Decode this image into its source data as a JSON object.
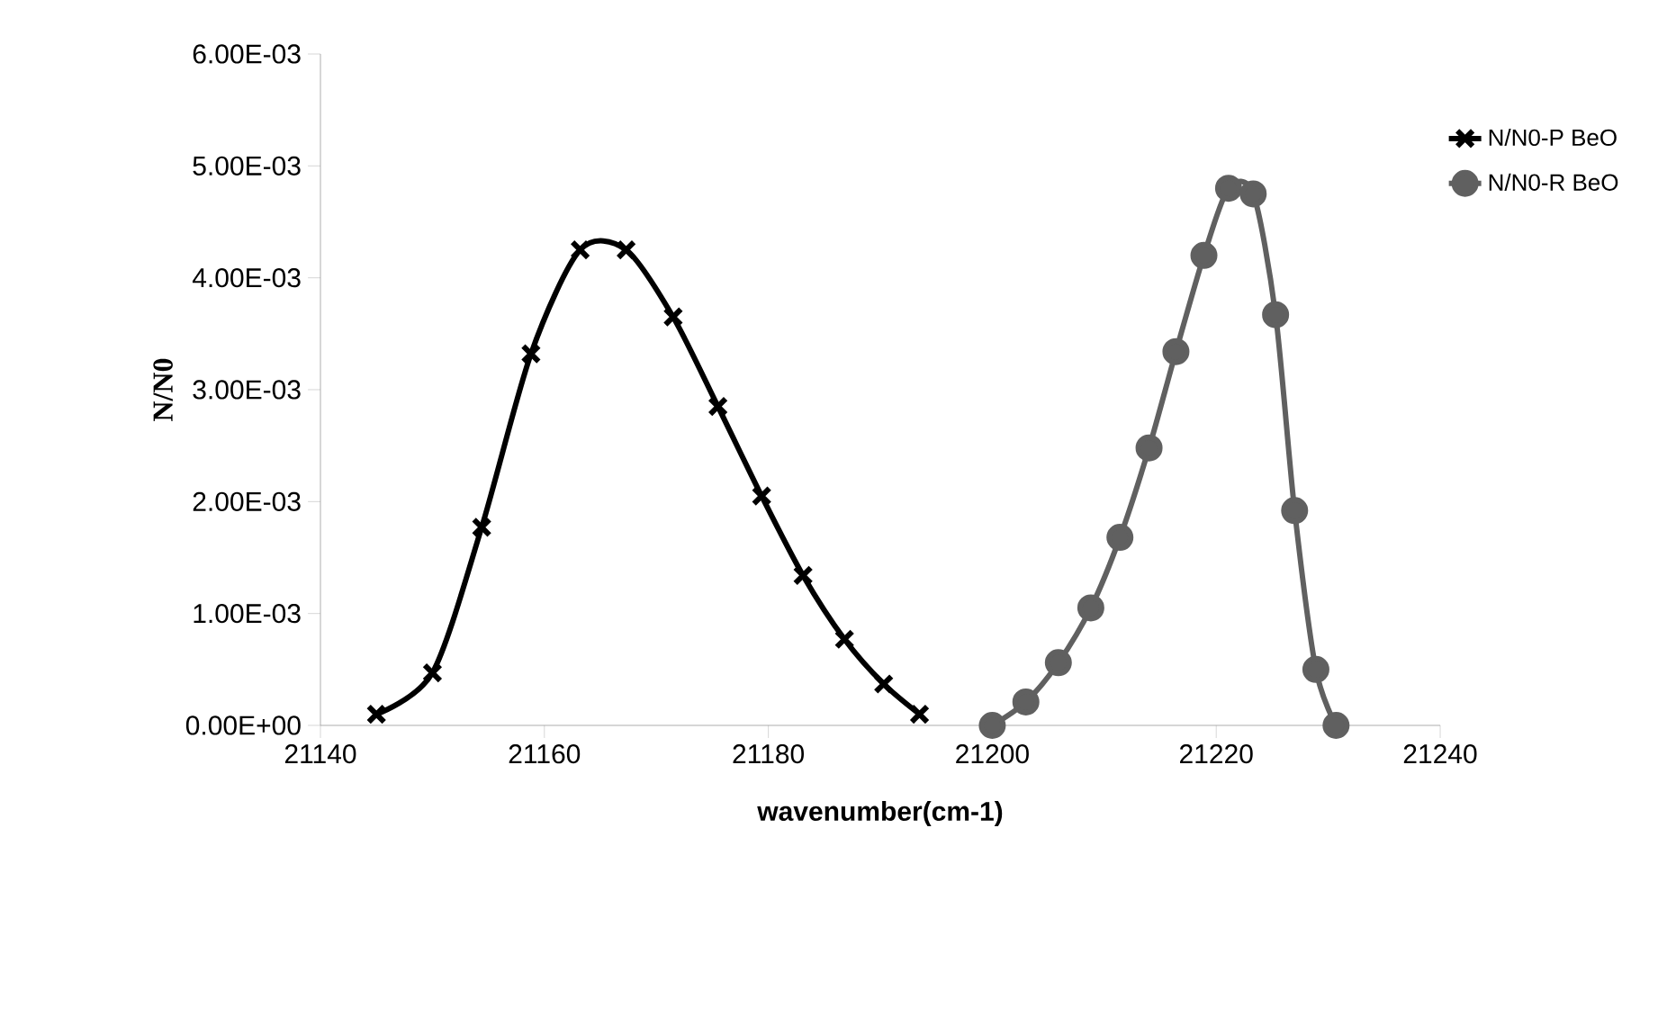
{
  "chart_data": {
    "type": "line",
    "xlabel": "wavenumber(cm-1)",
    "ylabel": "N/N0",
    "xlim": [
      21140,
      21240
    ],
    "xticks": [
      21140,
      21160,
      21180,
      21200,
      21220,
      21240
    ],
    "ylim": [
      0,
      0.006
    ],
    "yticks": [
      {
        "value": 0,
        "label": "0.00E+00"
      },
      {
        "value": 0.001,
        "label": "1.00E-03"
      },
      {
        "value": 0.002,
        "label": "2.00E-03"
      },
      {
        "value": 0.003,
        "label": "3.00E-03"
      },
      {
        "value": 0.004,
        "label": "4.00E-03"
      },
      {
        "value": 0.005,
        "label": "5.00E-03"
      },
      {
        "value": 0.006,
        "label": "6.00E-03"
      }
    ],
    "grid": false,
    "legend": "right",
    "line_style": "solid",
    "series": [
      {
        "name": "N/N0-P BeO",
        "color": "#000000",
        "marker": "cross",
        "x": [
          21145,
          21150,
          21154.4,
          21158.8,
          21163.2,
          21167.3,
          21171.5,
          21175.5,
          21179.4,
          21183.1,
          21186.8,
          21190.3,
          21193.5
        ],
        "values": [
          0.0001,
          0.00047,
          0.00177,
          0.00332,
          0.00425,
          0.00425,
          0.00365,
          0.00285,
          0.00205,
          0.00134,
          0.00077,
          0.00037,
          0.0001
        ]
      },
      {
        "name": "N/N0-R BeO",
        "color": "#606060",
        "marker": "circle",
        "x": [
          21200,
          21203,
          21205.9,
          21208.8,
          21211.4,
          21214,
          21216.4,
          21218.9,
          21221.1,
          21223.3,
          21225.3,
          21227,
          21228.9,
          21230.7
        ],
        "values": [
          0,
          0.00021,
          0.00056,
          0.00105,
          0.00168,
          0.00248,
          0.00334,
          0.0042,
          0.0048,
          0.00475,
          0.00367,
          0.00192,
          0.0005,
          0
        ]
      }
    ]
  }
}
